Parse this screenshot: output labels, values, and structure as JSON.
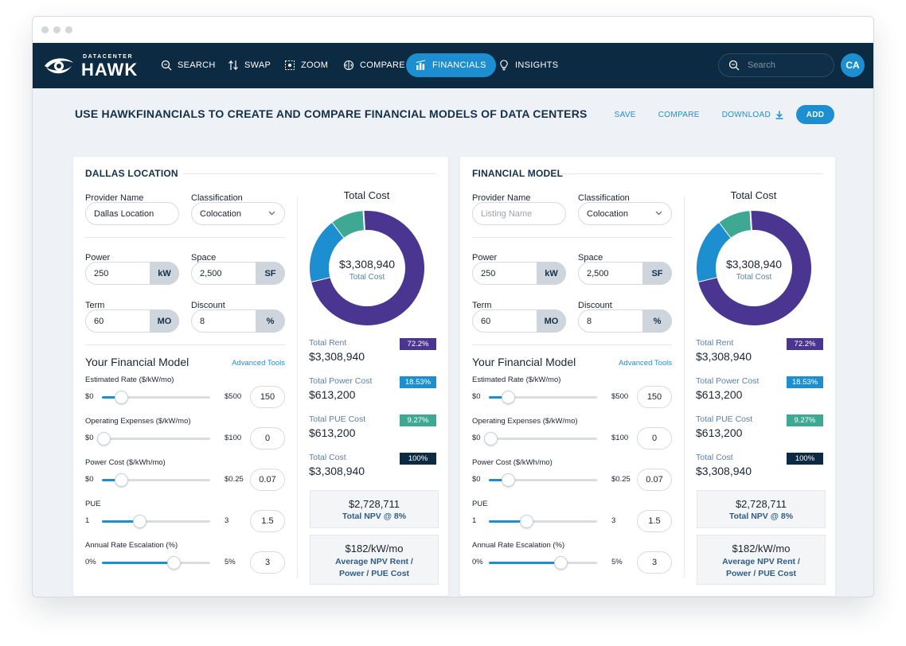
{
  "nav": {
    "brand_top": "DATACENTER",
    "brand_main": "HAWK",
    "items": [
      {
        "label": "SEARCH",
        "icon": "search-icon"
      },
      {
        "label": "SWAP",
        "icon": "swap-icon"
      },
      {
        "label": "ZOOM",
        "icon": "zoom-icon"
      },
      {
        "label": "COMPARE",
        "icon": "compare-icon"
      },
      {
        "label": "FINANCIALS",
        "icon": "bar-chart-icon",
        "active": true
      },
      {
        "label": "INSIGHTS",
        "icon": "lightbulb-icon"
      }
    ],
    "search_placeholder": "Search",
    "avatar_initials": "CA"
  },
  "header": {
    "title": "USE HAWKFINANCIALS TO CREATE AND COMPARE FINANCIAL MODELS OF DATA CENTERS",
    "save": "SAVE",
    "compare": "COMPARE",
    "download": "DOWNLOAD",
    "add": "ADD"
  },
  "labels": {
    "provider_name": "Provider Name",
    "classification": "Classification",
    "power": "Power",
    "space": "Space",
    "term": "Term",
    "discount": "Discount",
    "your_model": "Your Financial Model",
    "advanced_tools": "Advanced Tools",
    "estimated_rate": "Estimated Rate ($/kW/mo)",
    "opex": "Operating Expenses ($/kW/mo)",
    "power_cost": "Power Cost ($/kWh/mo)",
    "pue": "PUE",
    "escalation": "Annual Rate Escalation (%)",
    "total_cost_title": "Total Cost",
    "total_cost_sub": "Total Cost",
    "total_rent": "Total Rent",
    "total_power_cost": "Total Power Cost",
    "total_pue_cost": "Total PUE Cost",
    "total_cost": "Total Cost",
    "units": {
      "kw": "kW",
      "sf": "SF",
      "mo": "MO",
      "pct": "%"
    },
    "npv_label": "Total NPV @ 8%",
    "avg_npv_label_1": "Average NPV Rent /",
    "avg_npv_label_2": "Power / PUE Cost"
  },
  "colors": {
    "navy": "#0c2a42",
    "accent": "#1d8fd1",
    "rent": "#4a3590",
    "power": "#1d8fd1",
    "pue": "#3fa892",
    "total": "#0c2a42"
  },
  "panels": [
    {
      "title": "DALLAS LOCATION",
      "provider_name": "Dallas Location",
      "provider_placeholder": "",
      "classification": "Colocation",
      "power": "250",
      "space": "2,500",
      "term": "60",
      "discount": "8",
      "sliders": {
        "rate": {
          "min": "$0",
          "max": "$500",
          "value": "150",
          "fraction": 0.16
        },
        "opex": {
          "min": "$0",
          "max": "$100",
          "value": "0",
          "fraction": 0.0
        },
        "power": {
          "min": "$0",
          "max": "$0.25",
          "value": "0.07",
          "fraction": 0.16
        },
        "pue": {
          "min": "1",
          "max": "3",
          "value": "1.5",
          "fraction": 0.33
        },
        "escalation": {
          "min": "0%",
          "max": "5%",
          "value": "3",
          "fraction": 0.65
        }
      },
      "donut_total": "$3,308,940",
      "rent_value": "$3,308,940",
      "rent_pct": "72.2%",
      "power_value": "$613,200",
      "power_pct": "18.53%",
      "pue_value": "$613,200",
      "pue_pct": "9.27%",
      "total_value": "$3,308,940",
      "total_pct": "100%",
      "npv_value": "$2,728,711",
      "avg_npv_value": "$182/kW/mo"
    },
    {
      "title": "FINANCIAL MODEL",
      "provider_name": "",
      "provider_placeholder": "Listing Name",
      "classification": "Colocation",
      "power": "250",
      "space": "2,500",
      "term": "60",
      "discount": "8",
      "sliders": {
        "rate": {
          "min": "$0",
          "max": "$500",
          "value": "150",
          "fraction": 0.16
        },
        "opex": {
          "min": "$0",
          "max": "$100",
          "value": "0",
          "fraction": 0.0
        },
        "power": {
          "min": "$0",
          "max": "$0.25",
          "value": "0.07",
          "fraction": 0.16
        },
        "pue": {
          "min": "1",
          "max": "3",
          "value": "1.5",
          "fraction": 0.33
        },
        "escalation": {
          "min": "0%",
          "max": "5%",
          "value": "3",
          "fraction": 0.65
        }
      },
      "donut_total": "$3,308,940",
      "rent_value": "$3,308,940",
      "rent_pct": "72.2%",
      "power_value": "$613,200",
      "power_pct": "18.53%",
      "pue_value": "$613,200",
      "pue_pct": "9.27%",
      "total_value": "$3,308,940",
      "total_pct": "100%",
      "npv_value": "$2,728,711",
      "avg_npv_value": "$182/kW/mo"
    }
  ],
  "chart_data": {
    "type": "pie",
    "title": "Total Cost",
    "categories": [
      "Total Rent",
      "Total Power Cost",
      "Total PUE Cost"
    ],
    "values": [
      72.2,
      18.53,
      9.27
    ]
  }
}
